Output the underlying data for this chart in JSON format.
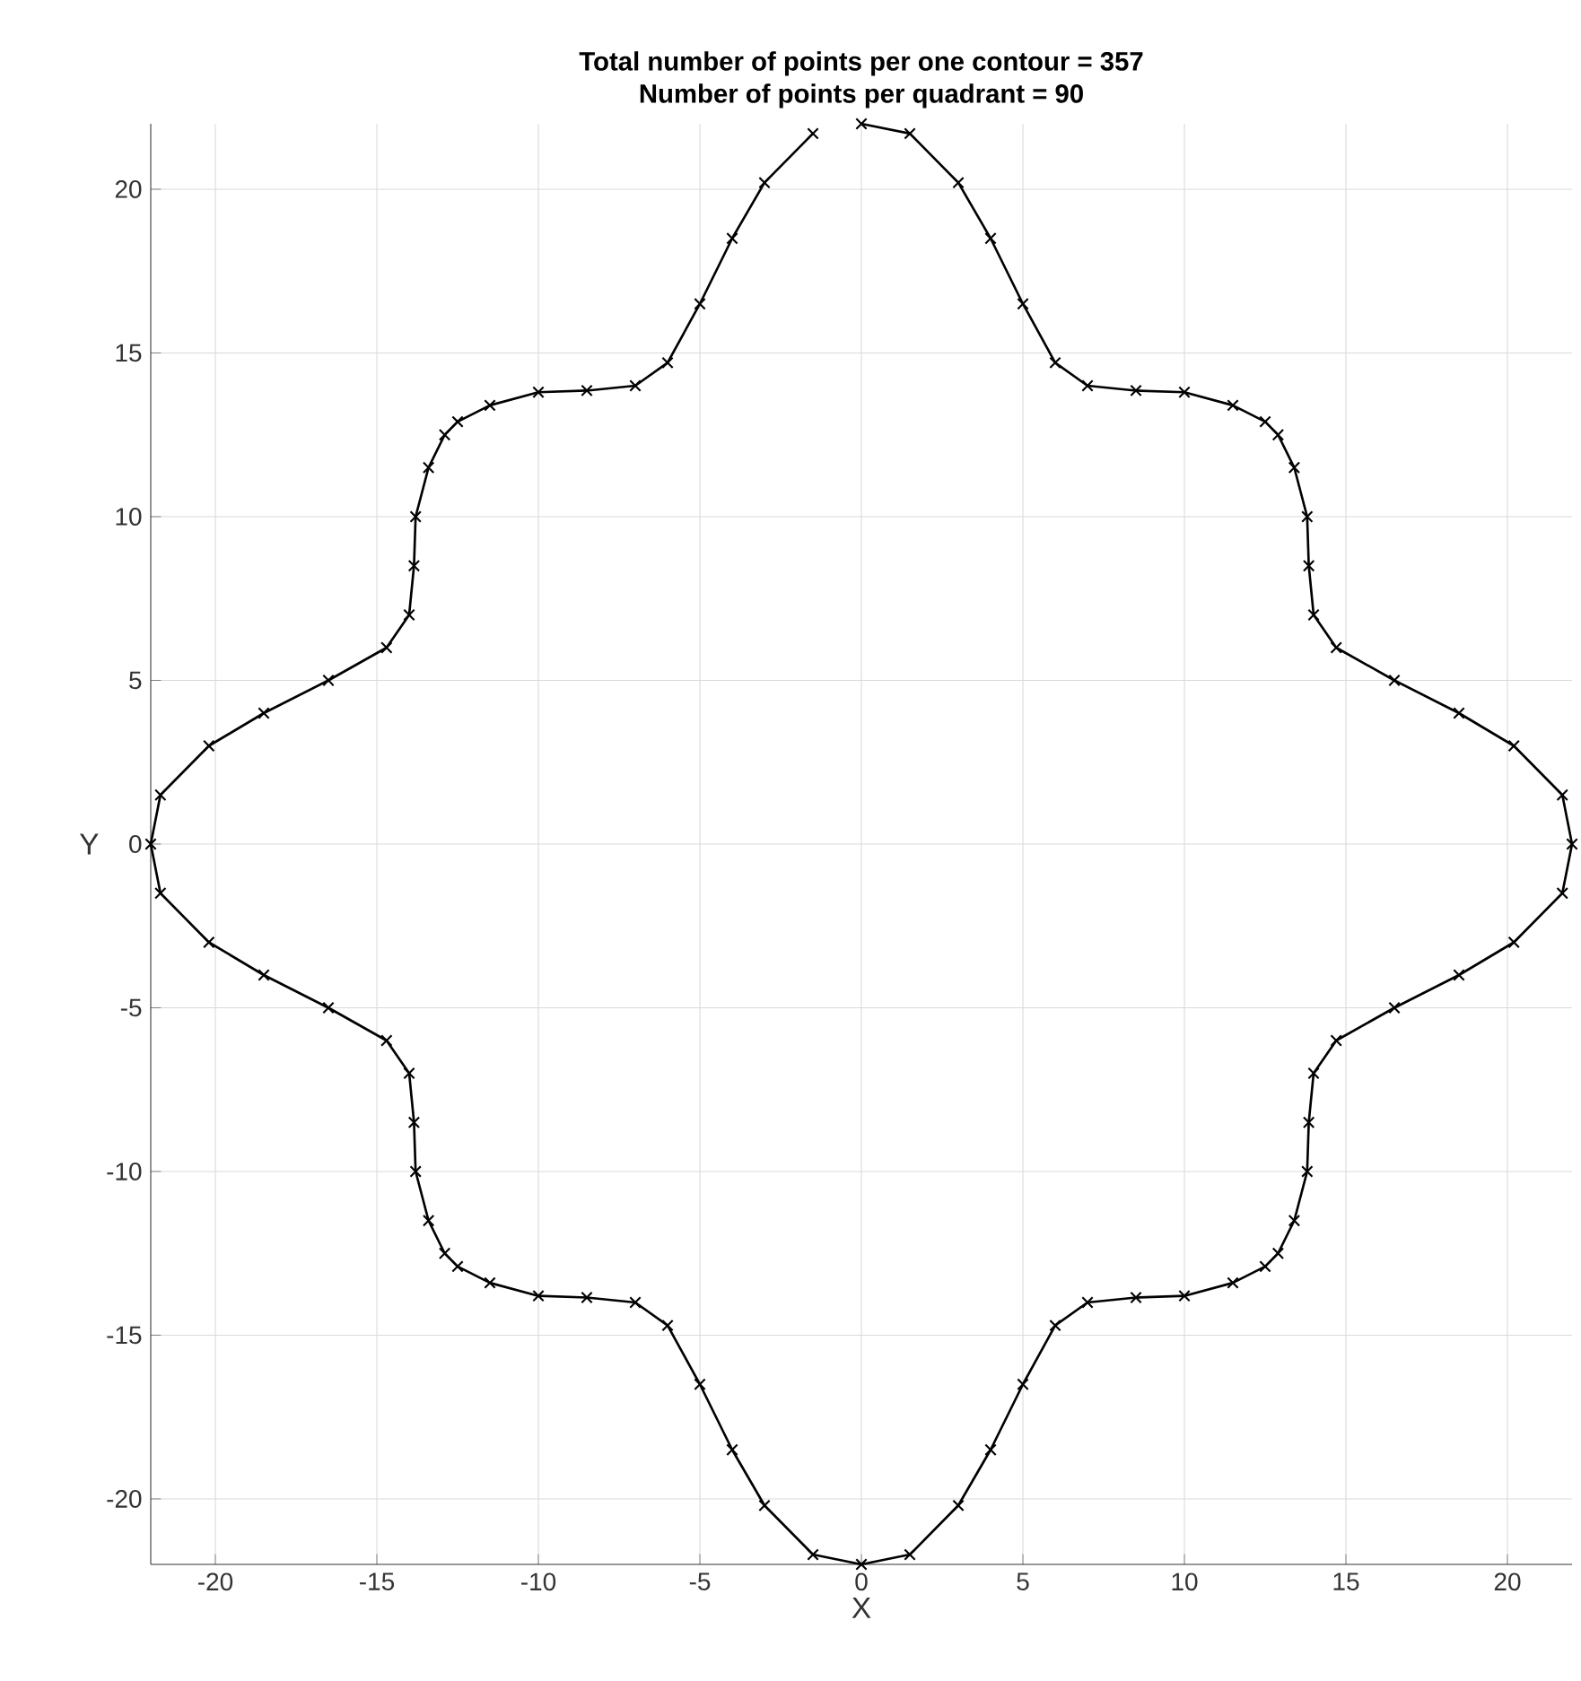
{
  "chart_data": {
    "type": "line",
    "title": "Total number of points per one contour = 357",
    "subtitle": "Number of points per quadrant = 90",
    "xlabel": "X",
    "ylabel": "Y",
    "marker": "cross",
    "series": [
      {
        "color": "#000000",
        "x": [
          0,
          1.5,
          3,
          4,
          5,
          6,
          7,
          8.5,
          10,
          11.5,
          12.5,
          12.9,
          13.4,
          13.8,
          13.85,
          14,
          14.7,
          16.5,
          18.5,
          20.2,
          21.7,
          22,
          21.7,
          20.2,
          18.5,
          16.5,
          14.7,
          14,
          13.85,
          13.8,
          13.4,
          12.9,
          12.5,
          11.5,
          10,
          8.5,
          7,
          6,
          5,
          4,
          3,
          1.5,
          0,
          -1.5,
          -3,
          -4,
          -5,
          -6,
          -7,
          -8.5,
          -10,
          -11.5,
          -12.5,
          -12.9,
          -13.4,
          -13.8,
          -13.85,
          -14,
          -14.7,
          -16.5,
          -18.5,
          -20.2,
          -21.7,
          -22,
          -21.7,
          -20.2,
          -18.5,
          -16.5,
          -14.7,
          -14,
          -13.85,
          -13.8,
          -13.4,
          -12.9,
          -12.5,
          -11.5,
          -10,
          -8.5,
          -7,
          -6,
          -5,
          -4,
          -3,
          -1.5
        ],
        "values": [
          22,
          21.7,
          20.2,
          18.5,
          16.5,
          14.7,
          14,
          13.85,
          13.8,
          13.4,
          12.9,
          12.5,
          11.5,
          10,
          8.5,
          7,
          6,
          5,
          4,
          3,
          1.5,
          0,
          -1.5,
          -3,
          -4,
          -5,
          -6,
          -7,
          -8.5,
          -10,
          -11.5,
          -12.5,
          -12.9,
          -13.4,
          -13.8,
          -13.85,
          -14,
          -14.7,
          -16.5,
          -18.5,
          -20.2,
          -21.7,
          -22,
          -21.7,
          -20.2,
          -18.5,
          -16.5,
          -14.7,
          -14,
          -13.85,
          -13.8,
          -13.4,
          -12.9,
          -12.5,
          -11.5,
          -10,
          -8.5,
          -7,
          -6,
          -5,
          -4,
          -3,
          -1.5,
          0,
          1.5,
          3,
          4,
          5,
          6,
          7,
          8.5,
          10,
          11.5,
          12.5,
          12.9,
          13.4,
          13.8,
          13.85,
          14,
          14.7,
          16.5,
          18.5,
          20.2,
          21.7
        ]
      }
    ],
    "xlim": [
      -22,
      22
    ],
    "ylim": [
      -22,
      22
    ],
    "xticks": [
      -20,
      -15,
      -10,
      -5,
      0,
      5,
      10,
      15,
      20
    ],
    "yticks": [
      -20,
      -15,
      -10,
      -5,
      0,
      5,
      10,
      15,
      20
    ],
    "grid": true
  }
}
